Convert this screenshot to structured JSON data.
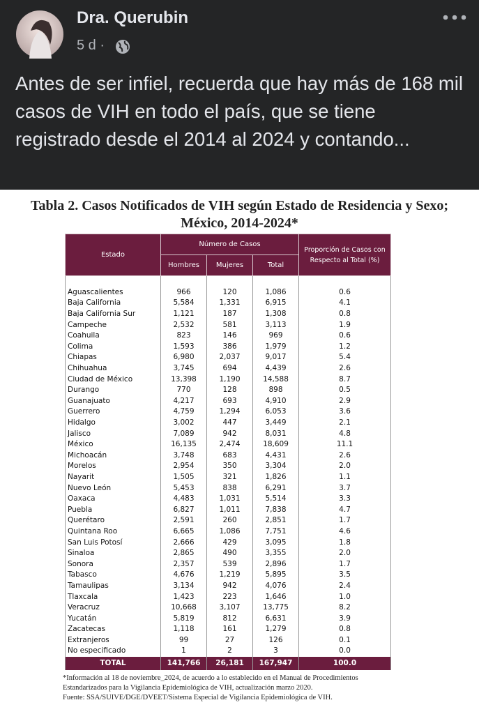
{
  "post": {
    "author": "Dra. Querubin",
    "time": "5 d ·",
    "text": "Antes de ser infiel, recuerda que hay más de 168 mil casos de VIH en todo el país, que se tiene registrado desde el 2014 al 2024 y contando..."
  },
  "document": {
    "title_line1": "Tabla 2. Casos Notificados de VIH según Estado de Residencia y Sexo;",
    "title_line2": "México, 2014-2024*",
    "table": {
      "header": {
        "estado": "Estado",
        "numero": "Número de Casos",
        "hombres": "Hombres",
        "mujeres": "Mujeres",
        "total": "Total",
        "proporcion": "Proporción de Casos con Respecto al Total (%)"
      },
      "rows": [
        [
          "Aguascalientes",
          "966",
          "120",
          "1,086",
          "0.6"
        ],
        [
          "Baja California",
          "5,584",
          "1,331",
          "6,915",
          "4.1"
        ],
        [
          "Baja California Sur",
          "1,121",
          "187",
          "1,308",
          "0.8"
        ],
        [
          "Campeche",
          "2,532",
          "581",
          "3,113",
          "1.9"
        ],
        [
          "Coahuila",
          "823",
          "146",
          "969",
          "0.6"
        ],
        [
          "Colima",
          "1,593",
          "386",
          "1,979",
          "1.2"
        ],
        [
          "Chiapas",
          "6,980",
          "2,037",
          "9,017",
          "5.4"
        ],
        [
          "Chihuahua",
          "3,745",
          "694",
          "4,439",
          "2.6"
        ],
        [
          "Ciudad de México",
          "13,398",
          "1,190",
          "14,588",
          "8.7"
        ],
        [
          "Durango",
          "770",
          "128",
          "898",
          "0.5"
        ],
        [
          "Guanajuato",
          "4,217",
          "693",
          "4,910",
          "2.9"
        ],
        [
          "Guerrero",
          "4,759",
          "1,294",
          "6,053",
          "3.6"
        ],
        [
          "Hidalgo",
          "3,002",
          "447",
          "3,449",
          "2.1"
        ],
        [
          "Jalisco",
          "7,089",
          "942",
          "8,031",
          "4.8"
        ],
        [
          "México",
          "16,135",
          "2,474",
          "18,609",
          "11.1"
        ],
        [
          "Michoacán",
          "3,748",
          "683",
          "4,431",
          "2.6"
        ],
        [
          "Morelos",
          "2,954",
          "350",
          "3,304",
          "2.0"
        ],
        [
          "Nayarit",
          "1,505",
          "321",
          "1,826",
          "1.1"
        ],
        [
          "Nuevo León",
          "5,453",
          "838",
          "6,291",
          "3.7"
        ],
        [
          "Oaxaca",
          "4,483",
          "1,031",
          "5,514",
          "3.3"
        ],
        [
          "Puebla",
          "6,827",
          "1,011",
          "7,838",
          "4.7"
        ],
        [
          "Querétaro",
          "2,591",
          "260",
          "2,851",
          "1.7"
        ],
        [
          "Quintana Roo",
          "6,665",
          "1,086",
          "7,751",
          "4.6"
        ],
        [
          "San Luis Potosí",
          "2,666",
          "429",
          "3,095",
          "1.8"
        ],
        [
          "Sinaloa",
          "2,865",
          "490",
          "3,355",
          "2.0"
        ],
        [
          "Sonora",
          "2,357",
          "539",
          "2,896",
          "1.7"
        ],
        [
          "Tabasco",
          "4,676",
          "1,219",
          "5,895",
          "3.5"
        ],
        [
          "Tamaulipas",
          "3,134",
          "942",
          "4,076",
          "2.4"
        ],
        [
          "Tlaxcala",
          "1,423",
          "223",
          "1,646",
          "1.0"
        ],
        [
          "Veracruz",
          "10,668",
          "3,107",
          "13,775",
          "8.2"
        ],
        [
          "Yucatán",
          "5,819",
          "812",
          "6,631",
          "3.9"
        ],
        [
          "Zacatecas",
          "1,118",
          "161",
          "1,279",
          "0.8"
        ],
        [
          "Extranjeros",
          "99",
          "27",
          "126",
          "0.1"
        ],
        [
          "No especificado",
          "1",
          "2",
          "3",
          "0.0"
        ]
      ],
      "total": [
        "TOTAL",
        "141,766",
        "26,181",
        "167,947",
        "100.0"
      ]
    },
    "footnotes": [
      "*Información al 18 de noviembre_2024, de acuerdo a lo establecido en el Manual de Procedimientos",
      "Estandarizados para la Vigilancia Epidemiológica de VIH, actualización marzo 2020.",
      "Fuente: SSA/SUIVE/DGE/DVEET/Sistema Especial de Vigilancia Epidemiológica de VIH."
    ]
  }
}
